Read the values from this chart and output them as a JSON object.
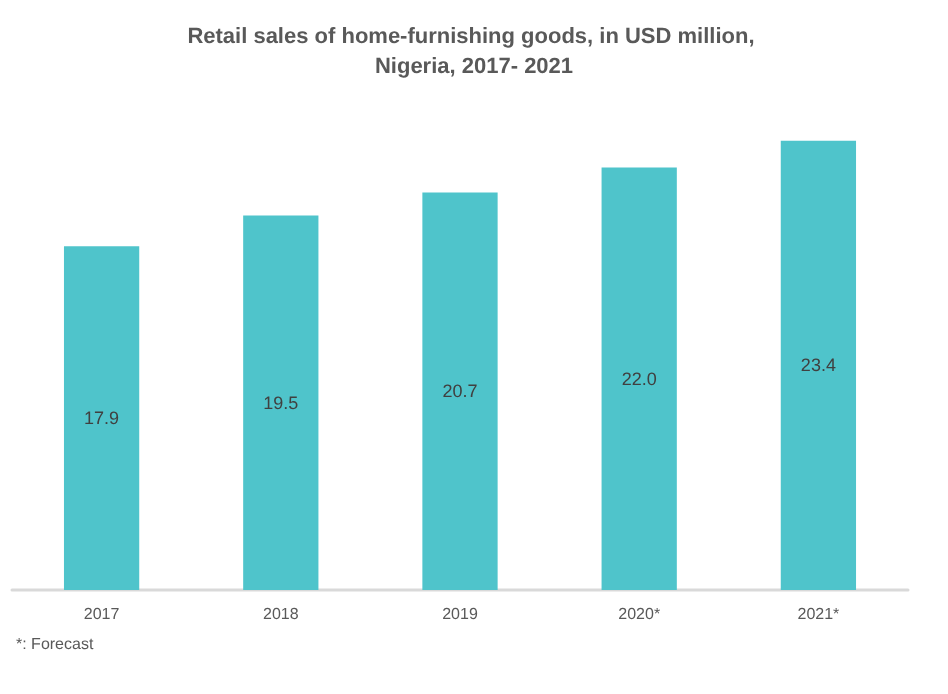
{
  "chart_data": {
    "type": "bar",
    "title": "Retail sales of home-furnishing goods, in USD million, Nigeria, 2017- 2021",
    "categories": [
      "2017",
      "2018",
      "2019",
      "2020*",
      "2021*"
    ],
    "values": [
      17.9,
      19.5,
      20.7,
      22.0,
      23.4
    ],
    "color": "#4fc4cb",
    "value_labels": [
      "17.9",
      "19.5",
      "20.7",
      "22.0",
      "23.4"
    ],
    "annotations": [
      "*: Forecast"
    ]
  }
}
